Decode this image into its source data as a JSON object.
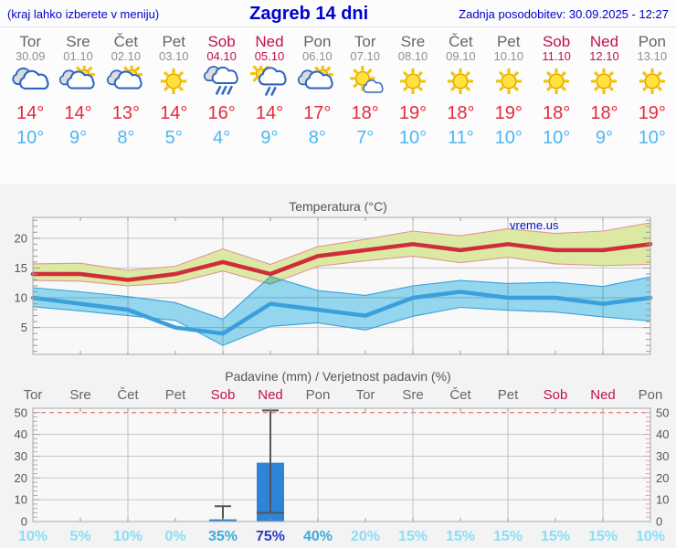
{
  "header": {
    "left": "(kraj lahko izberete v meniju)",
    "title": "Zagreb 14 dni",
    "right": "Zadnja posodobitev: 30.09.2025 - 12:27"
  },
  "watermark": "vreme.us",
  "temp_chart_title": "Temperatura (°C)",
  "precip_chart_title": "Padavine (mm) / Verjetnost padavin (%)",
  "days": [
    {
      "name": "Tor",
      "date": "30.09",
      "weekend": false,
      "icon": "cloudy",
      "tmax": "14°",
      "tmin": "10°",
      "pop_label": "10%"
    },
    {
      "name": "Sre",
      "date": "01.10",
      "weekend": false,
      "icon": "partly",
      "tmax": "14°",
      "tmin": "9°",
      "pop_label": "5%"
    },
    {
      "name": "Čet",
      "date": "02.10",
      "weekend": false,
      "icon": "partly",
      "tmax": "13°",
      "tmin": "8°",
      "pop_label": "10%"
    },
    {
      "name": "Pet",
      "date": "03.10",
      "weekend": false,
      "icon": "sunny",
      "tmax": "14°",
      "tmin": "5°",
      "pop_label": "0%"
    },
    {
      "name": "Sob",
      "date": "04.10",
      "weekend": true,
      "icon": "rain",
      "tmax": "16°",
      "tmin": "4°",
      "pop_label": "35%"
    },
    {
      "name": "Ned",
      "date": "05.10",
      "weekend": true,
      "icon": "sun-rain",
      "tmax": "14°",
      "tmin": "9°",
      "pop_label": "75%"
    },
    {
      "name": "Pon",
      "date": "06.10",
      "weekend": false,
      "icon": "partly",
      "tmax": "17°",
      "tmin": "8°",
      "pop_label": "40%"
    },
    {
      "name": "Tor",
      "date": "07.10",
      "weekend": false,
      "icon": "mostly-sunny",
      "tmax": "18°",
      "tmin": "7°",
      "pop_label": "20%"
    },
    {
      "name": "Sre",
      "date": "08.10",
      "weekend": false,
      "icon": "sunny",
      "tmax": "19°",
      "tmin": "10°",
      "pop_label": "15%"
    },
    {
      "name": "Čet",
      "date": "09.10",
      "weekend": false,
      "icon": "sunny",
      "tmax": "18°",
      "tmin": "11°",
      "pop_label": "15%"
    },
    {
      "name": "Pet",
      "date": "10.10",
      "weekend": false,
      "icon": "sunny",
      "tmax": "19°",
      "tmin": "10°",
      "pop_label": "15%"
    },
    {
      "name": "Sob",
      "date": "11.10",
      "weekend": true,
      "icon": "sunny",
      "tmax": "18°",
      "tmin": "10°",
      "pop_label": "15%"
    },
    {
      "name": "Ned",
      "date": "12.10",
      "weekend": true,
      "icon": "sunny",
      "tmax": "18°",
      "tmin": "9°",
      "pop_label": "15%"
    },
    {
      "name": "Pon",
      "date": "13.10",
      "weekend": false,
      "icon": "sunny",
      "tmax": "19°",
      "tmin": "10°",
      "pop_label": "10%"
    }
  ],
  "chart_data": [
    {
      "type": "line",
      "title": "Temperatura (°C)",
      "categories": [
        "Tor 30.09",
        "Sre 01.10",
        "Čet 02.10",
        "Pet 03.10",
        "Sob 04.10",
        "Ned 05.10",
        "Pon 06.10",
        "Tor 07.10",
        "Sre 08.10",
        "Čet 09.10",
        "Pet 10.10",
        "Sob 11.10",
        "Ned 12.10",
        "Pon 13.10"
      ],
      "ylim": [
        0.5,
        23.5
      ],
      "yticks": [
        5,
        10,
        15,
        20
      ],
      "grid_days": [
        2,
        4,
        6,
        8,
        10,
        12
      ],
      "legend_position": "none",
      "series": [
        {
          "name": "max",
          "values": [
            14,
            14,
            13,
            14,
            16,
            14,
            17,
            18,
            19,
            18,
            19,
            18,
            18,
            19
          ]
        },
        {
          "name": "max_range_high",
          "values": [
            15.7,
            15.8,
            14.6,
            15.3,
            18.2,
            15.6,
            18.6,
            19.8,
            21.2,
            20.4,
            21.6,
            20.8,
            21.2,
            22.6
          ]
        },
        {
          "name": "max_range_low",
          "values": [
            12.9,
            12.8,
            12.0,
            12.5,
            14.5,
            12.3,
            15.3,
            16.2,
            17.0,
            15.9,
            16.8,
            15.7,
            15.4,
            15.6
          ]
        },
        {
          "name": "min",
          "values": [
            10,
            9,
            8,
            5,
            4,
            9,
            8,
            7,
            10,
            11,
            10,
            10,
            9,
            10
          ]
        },
        {
          "name": "min_range_high",
          "values": [
            11.7,
            11.0,
            10.2,
            9.2,
            6.4,
            13.6,
            11.2,
            10.4,
            12.0,
            12.9,
            12.4,
            12.6,
            11.9,
            13.5
          ]
        },
        {
          "name": "min_range_low",
          "values": [
            8.5,
            7.8,
            7.0,
            6.2,
            2.0,
            5.2,
            5.8,
            4.6,
            6.9,
            8.4,
            7.9,
            7.6,
            6.8,
            6.1
          ]
        }
      ]
    },
    {
      "type": "bar",
      "title": "Padavine (mm) / Verjetnost padavin (%)",
      "categories": [
        "Tor",
        "Sre",
        "Čet",
        "Pet",
        "Sob",
        "Ned",
        "Pon",
        "Tor",
        "Sre",
        "Čet",
        "Pet",
        "Sob",
        "Ned",
        "Pon"
      ],
      "ylim": [
        0,
        52
      ],
      "yticks": [
        0,
        10,
        20,
        30,
        40,
        50
      ],
      "dashed_line_at": 50,
      "grid_days": [
        2,
        4,
        6,
        8,
        10,
        12
      ],
      "values": [
        0,
        0,
        0,
        0,
        1,
        27,
        0,
        0,
        0,
        0,
        0,
        0,
        0,
        0
      ],
      "whiskers": [
        {
          "day": 4,
          "low": 1,
          "high": 7
        },
        {
          "day": 5,
          "low": 4,
          "high": 51
        }
      ],
      "probabilities_pct": [
        10,
        5,
        10,
        0,
        35,
        75,
        40,
        20,
        15,
        15,
        15,
        15,
        15,
        10
      ]
    }
  ],
  "colors": {
    "header_blue": "#0000cc",
    "weekday": "#666666",
    "date": "#909090",
    "weekend": "#bf1250",
    "tmax": "#e32b3d",
    "tmin": "#4db6f2",
    "max_line": "#d02c3a",
    "max_band": "#dce9a2",
    "max_band_edge": "#e39494",
    "min_line": "#3aa0dc",
    "min_band": "#97dcf4",
    "bar": "#2e85d8",
    "whisker": "#555555",
    "dashed_red": "#e57373",
    "pop_low": "#8adef6",
    "pop_mid": "#3fa9de",
    "pop_high": "#2b3cc0",
    "watermark_blue": "#0014cc"
  }
}
